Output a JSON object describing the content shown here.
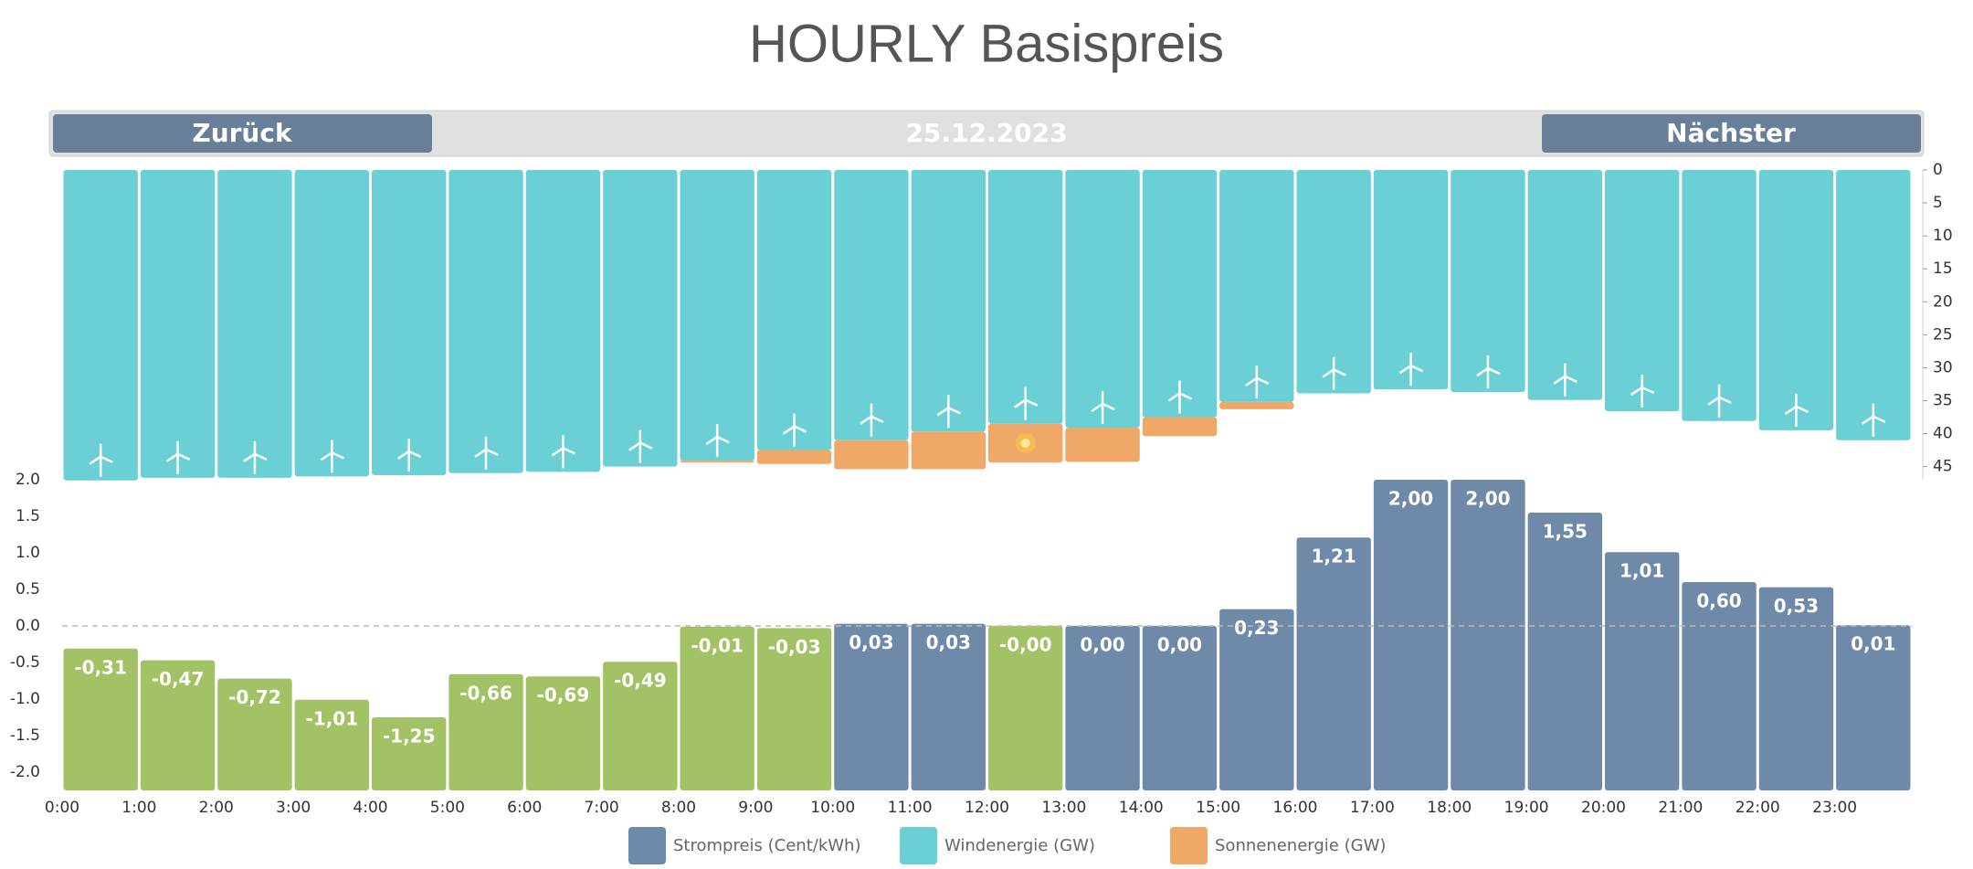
{
  "title": "HOURLY Basispreis",
  "navigation": {
    "back": "Zurück",
    "date": "25.12.2023",
    "next": "Nächster"
  },
  "chart_data": [
    {
      "type": "bar",
      "stacked": true,
      "inverted": true,
      "axis_side": "right",
      "ylim": [
        0,
        47
      ],
      "yticks": [
        0,
        5,
        10,
        15,
        20,
        25,
        30,
        35,
        40,
        45
      ],
      "series": [
        {
          "name": "Windenergie (GW)",
          "color": "#6bd0d6",
          "values": [
            47.1,
            46.7,
            46.7,
            46.5,
            46.3,
            46.0,
            45.8,
            45.0,
            44.1,
            42.5,
            41.0,
            39.7,
            38.5,
            39.1,
            37.5,
            35.2,
            33.9,
            33.3,
            33.7,
            34.9,
            36.6,
            38.1,
            39.5,
            41.0
          ]
        },
        {
          "name": "Sonnenenergie (GW)",
          "color": "#f0a868",
          "values": [
            0,
            0,
            0,
            0,
            0,
            0,
            0,
            0,
            0.3,
            2.1,
            4.4,
            5.7,
            5.9,
            5.2,
            2.9,
            1.1,
            0,
            0,
            0,
            0,
            0,
            0,
            0,
            0
          ]
        }
      ]
    },
    {
      "type": "bar",
      "axis_side": "left",
      "categories": [
        "0:00",
        "1:00",
        "2:00",
        "3:00",
        "4:00",
        "5:00",
        "6:00",
        "7:00",
        "8:00",
        "9:00",
        "10:00",
        "11:00",
        "12:00",
        "13:00",
        "14:00",
        "15:00",
        "16:00",
        "17:00",
        "18:00",
        "19:00",
        "20:00",
        "21:00",
        "22:00",
        "23:00"
      ],
      "ylim": [
        -2.25,
        2
      ],
      "yticks": [
        {
          "value": 2,
          "label": "2.0"
        },
        1.5,
        {
          "value": 1,
          "label": "1.0"
        },
        0.5,
        {
          "value": 0,
          "label": "0.0"
        },
        -0.5,
        {
          "value": -1,
          "label": "-1.0"
        },
        -1.5,
        {
          "value": -2,
          "label": "-2.0"
        }
      ],
      "zero_line": true,
      "series": [
        {
          "name": "Strompreis (Cent/kWh)",
          "color": "#6f8aa8",
          "point_colors": [
            "#a3c266",
            "#a3c266",
            "#a3c266",
            "#a3c266",
            "#a3c266",
            "#a3c266",
            "#a3c266",
            "#a3c266",
            "#a3c266",
            "#a3c266",
            "#6f8aa8",
            "#6f8aa8",
            "#a3c266",
            "#6f8aa8",
            "#6f8aa8",
            "#6f8aa8",
            "#6f8aa8",
            "#6f8aa8",
            "#6f8aa8",
            "#6f8aa8",
            "#6f8aa8",
            "#6f8aa8",
            "#6f8aa8",
            "#6f8aa8"
          ],
          "values": [
            -0.31,
            -0.47,
            -0.72,
            -1.01,
            -1.25,
            -0.66,
            -0.69,
            -0.49,
            -0.01,
            -0.03,
            0.03,
            0.03,
            0,
            0,
            0,
            0.23,
            1.21,
            2,
            2,
            1.55,
            1.01,
            0.6,
            0.53,
            0.01
          ],
          "value_labels": [
            "-0,31",
            "-0,47",
            "-0,72",
            "-1,01",
            "-1,25",
            "-0,66",
            "-0,69",
            "-0,49",
            "-0,01",
            "-0,03",
            "0,03",
            "0,03",
            "-0,00",
            "0,00",
            "0,00",
            "0,23",
            "1,21",
            "2,00",
            "2,00",
            "1,55",
            "1,01",
            "0,60",
            "0,53",
            "0,01"
          ]
        }
      ]
    }
  ]
}
